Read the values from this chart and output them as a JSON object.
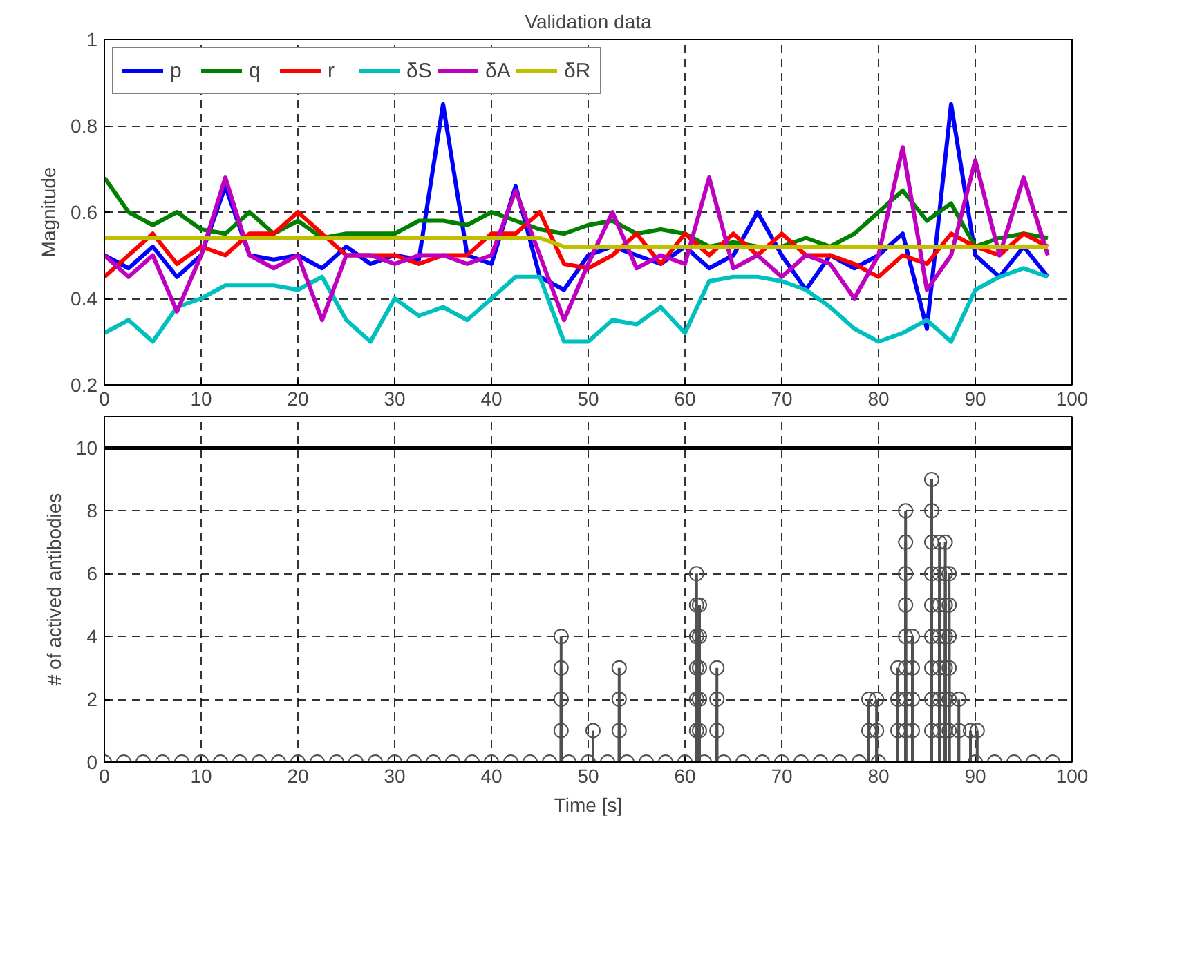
{
  "chart_data": [
    {
      "type": "line",
      "title": "Validation data",
      "ylabel": "Magnitude",
      "xlim": [
        0,
        100
      ],
      "xticks": [
        0,
        10,
        20,
        30,
        40,
        50,
        60,
        70,
        80,
        90,
        100
      ],
      "ylim": [
        0.2,
        1
      ],
      "yticks": [
        0.2,
        0.4,
        0.6,
        0.8,
        1
      ],
      "grid": true,
      "legend": "top left",
      "line_style": "solid",
      "x": [
        0,
        2.5,
        5,
        7.5,
        10,
        12.5,
        15,
        17.5,
        20,
        22.5,
        25,
        27.5,
        30,
        32.5,
        35,
        37.5,
        40,
        42.5,
        45,
        47.5,
        50,
        52.5,
        55,
        57.5,
        60,
        62.5,
        65,
        67.5,
        70,
        72.5,
        75,
        77.5,
        80,
        82.5,
        85,
        87.5,
        90,
        92.5,
        95,
        97.5
      ],
      "series": [
        {
          "name": "p",
          "color": "#0000ff",
          "values": [
            0.5,
            0.47,
            0.52,
            0.45,
            0.5,
            0.66,
            0.5,
            0.49,
            0.5,
            0.47,
            0.52,
            0.48,
            0.5,
            0.49,
            0.85,
            0.5,
            0.48,
            0.66,
            0.45,
            0.42,
            0.5,
            0.52,
            0.5,
            0.48,
            0.52,
            0.47,
            0.5,
            0.6,
            0.5,
            0.42,
            0.5,
            0.47,
            0.5,
            0.55,
            0.33,
            0.85,
            0.5,
            0.45,
            0.52,
            0.45
          ]
        },
        {
          "name": "q",
          "color": "#008000",
          "values": [
            0.68,
            0.6,
            0.57,
            0.6,
            0.56,
            0.55,
            0.6,
            0.55,
            0.58,
            0.54,
            0.55,
            0.55,
            0.55,
            0.58,
            0.58,
            0.57,
            0.6,
            0.58,
            0.56,
            0.55,
            0.57,
            0.58,
            0.55,
            0.56,
            0.55,
            0.52,
            0.53,
            0.52,
            0.52,
            0.54,
            0.52,
            0.55,
            0.6,
            0.65,
            0.58,
            0.62,
            0.52,
            0.54,
            0.55,
            0.54
          ]
        },
        {
          "name": "r",
          "color": "#ff0000",
          "values": [
            0.45,
            0.5,
            0.55,
            0.48,
            0.52,
            0.5,
            0.55,
            0.55,
            0.6,
            0.55,
            0.5,
            0.5,
            0.5,
            0.48,
            0.5,
            0.5,
            0.55,
            0.55,
            0.6,
            0.48,
            0.47,
            0.5,
            0.55,
            0.48,
            0.55,
            0.5,
            0.55,
            0.5,
            0.55,
            0.5,
            0.5,
            0.48,
            0.45,
            0.5,
            0.48,
            0.55,
            0.52,
            0.5,
            0.55,
            0.52
          ]
        },
        {
          "name": "δS",
          "color": "#00bfbf",
          "values": [
            0.32,
            0.35,
            0.3,
            0.38,
            0.4,
            0.43,
            0.43,
            0.43,
            0.42,
            0.45,
            0.35,
            0.3,
            0.4,
            0.36,
            0.38,
            0.35,
            0.4,
            0.45,
            0.45,
            0.3,
            0.3,
            0.35,
            0.34,
            0.38,
            0.32,
            0.44,
            0.45,
            0.45,
            0.44,
            0.42,
            0.38,
            0.33,
            0.3,
            0.32,
            0.35,
            0.3,
            0.42,
            0.45,
            0.47,
            0.45
          ]
        },
        {
          "name": "δA",
          "color": "#bf00bf",
          "values": [
            0.5,
            0.45,
            0.5,
            0.37,
            0.5,
            0.68,
            0.5,
            0.47,
            0.5,
            0.35,
            0.5,
            0.5,
            0.48,
            0.5,
            0.5,
            0.48,
            0.5,
            0.65,
            0.5,
            0.35,
            0.48,
            0.6,
            0.47,
            0.5,
            0.48,
            0.68,
            0.47,
            0.5,
            0.45,
            0.5,
            0.48,
            0.4,
            0.5,
            0.75,
            0.42,
            0.5,
            0.72,
            0.5,
            0.68,
            0.5
          ]
        },
        {
          "name": "δR",
          "color": "#bfbf00",
          "values": [
            0.54,
            0.54,
            0.54,
            0.54,
            0.54,
            0.54,
            0.54,
            0.54,
            0.54,
            0.54,
            0.54,
            0.54,
            0.54,
            0.54,
            0.54,
            0.54,
            0.54,
            0.54,
            0.54,
            0.52,
            0.52,
            0.52,
            0.52,
            0.52,
            0.52,
            0.52,
            0.52,
            0.52,
            0.52,
            0.52,
            0.52,
            0.52,
            0.52,
            0.52,
            0.52,
            0.52,
            0.52,
            0.52,
            0.52,
            0.52
          ]
        }
      ]
    },
    {
      "type": "lollipop",
      "xlabel": "Time [s]",
      "ylabel": "# of actived antibodies",
      "xlim": [
        0,
        100
      ],
      "xticks": [
        0,
        10,
        20,
        30,
        40,
        50,
        60,
        70,
        80,
        90,
        100
      ],
      "ylim": [
        0,
        11
      ],
      "yticks": [
        0,
        2,
        4,
        6,
        8,
        10
      ],
      "grid": true,
      "marker": "circle",
      "ref_lines": [
        {
          "axis": "y",
          "value": 10,
          "color": "#000000"
        }
      ],
      "series": [
        {
          "color": "#505050",
          "x": [
            0,
            2,
            4,
            6,
            8,
            10,
            12,
            14,
            16,
            18,
            20,
            22,
            24,
            26,
            28,
            30,
            32,
            34,
            36,
            38,
            40,
            42,
            44,
            46,
            48,
            50,
            52,
            54,
            56,
            58,
            60,
            62,
            64,
            66,
            68,
            70,
            72,
            74,
            76,
            78,
            80,
            90,
            92,
            94,
            96,
            98,
            47.2,
            47.2,
            47.2,
            47.2,
            50.5,
            53.2,
            53.2,
            53.2,
            61.2,
            61.2,
            61.2,
            61.2,
            61.2,
            61.2,
            61.5,
            61.5,
            61.5,
            61.5,
            61.5,
            63.3,
            63.3,
            63.3,
            79,
            79,
            79.8,
            79.8,
            82,
            82,
            82,
            82.8,
            82.8,
            82.8,
            82.8,
            82.8,
            82.8,
            82.8,
            82.8,
            83.5,
            83.5,
            83.5,
            83.5,
            85.5,
            85.5,
            85.5,
            85.5,
            85.5,
            85.5,
            85.5,
            85.5,
            85.5,
            86.3,
            86.3,
            86.3,
            86.3,
            86.3,
            86.3,
            86.3,
            86.9,
            86.9,
            86.9,
            86.9,
            86.9,
            86.9,
            86.9,
            87.3,
            87.3,
            87.3,
            87.3,
            87.3,
            87.3,
            88.3,
            88.3,
            89.5,
            90.2
          ],
          "values": [
            0,
            0,
            0,
            0,
            0,
            0,
            0,
            0,
            0,
            0,
            0,
            0,
            0,
            0,
            0,
            0,
            0,
            0,
            0,
            0,
            0,
            0,
            0,
            0,
            0,
            0,
            0,
            0,
            0,
            0,
            0,
            0,
            0,
            0,
            0,
            0,
            0,
            0,
            0,
            0,
            0,
            0,
            0,
            0,
            0,
            0,
            1,
            2,
            3,
            4,
            1,
            1,
            2,
            3,
            1,
            2,
            3,
            4,
            5,
            6,
            1,
            2,
            3,
            4,
            5,
            1,
            2,
            3,
            1,
            2,
            1,
            2,
            1,
            2,
            3,
            1,
            2,
            3,
            4,
            5,
            6,
            7,
            8,
            1,
            2,
            3,
            4,
            1,
            2,
            3,
            4,
            5,
            6,
            7,
            8,
            9,
            1,
            2,
            3,
            4,
            5,
            6,
            7,
            1,
            2,
            3,
            4,
            5,
            6,
            7,
            1,
            2,
            3,
            4,
            5,
            6,
            1,
            2,
            1,
            1
          ]
        }
      ]
    }
  ]
}
